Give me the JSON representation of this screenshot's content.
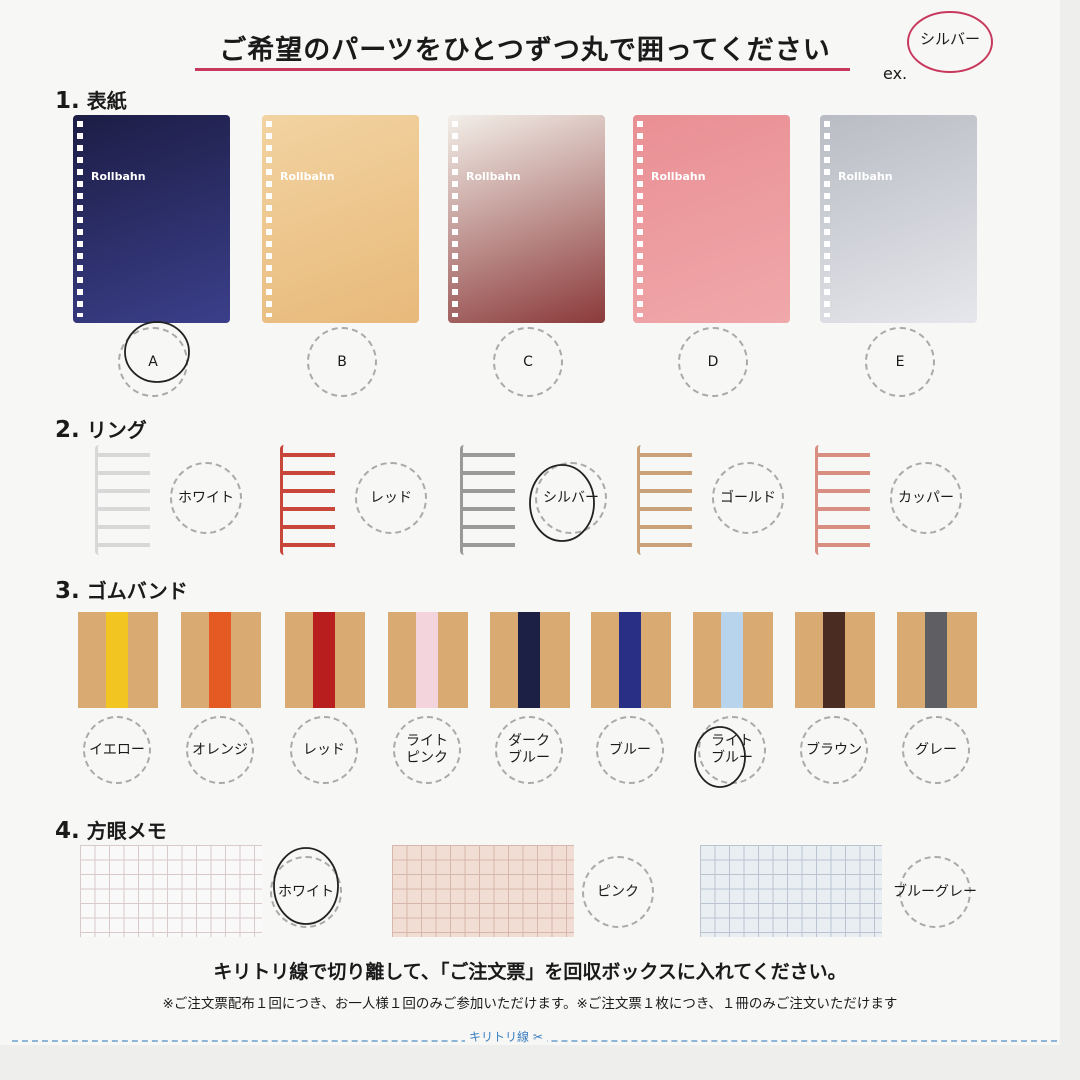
{
  "title": "ご希望のパーツをひとつずつ丸で囲ってください",
  "example": {
    "prefix": "ex.",
    "label": "シルバー"
  },
  "accent_color": "#c8385d",
  "sections": [
    {
      "num": "1.",
      "label": "表紙",
      "brand": "Rollbahn",
      "items": [
        {
          "label": "A",
          "colors": [
            "#1c1d45",
            "#3b3f8a"
          ],
          "selected": true
        },
        {
          "label": "B",
          "colors": [
            "#f2d3a1",
            "#e8b97a"
          ],
          "selected": false
        },
        {
          "label": "C",
          "colors": [
            "#f3efe9",
            "#8b3a3a"
          ],
          "selected": false
        },
        {
          "label": "D",
          "colors": [
            "#e98f94",
            "#f0a8aa"
          ],
          "selected": false
        },
        {
          "label": "E",
          "colors": [
            "#b9bcc4",
            "#e6e7ec"
          ],
          "selected": false
        }
      ]
    },
    {
      "num": "2.",
      "label": "リング",
      "items": [
        {
          "label": "ホワイト",
          "color": "#d8d8d8",
          "selected": false
        },
        {
          "label": "レッド",
          "color": "#c8473a",
          "selected": false
        },
        {
          "label": "シルバー",
          "color": "#9a9a9a",
          "selected": true
        },
        {
          "label": "ゴールド",
          "color": "#c9a27a",
          "selected": false
        },
        {
          "label": "カッパー",
          "color": "#d88f82",
          "selected": false
        }
      ]
    },
    {
      "num": "3.",
      "label": "ゴムバンド",
      "items": [
        {
          "label": "イエロー",
          "color": "#f2c521",
          "selected": false
        },
        {
          "label": "オレンジ",
          "color": "#e45a22",
          "selected": false
        },
        {
          "label": "レッド",
          "color": "#b81e1e",
          "selected": false
        },
        {
          "label": "ライト\nピンク",
          "color": "#f3d3dc",
          "selected": false
        },
        {
          "label": "ダーク\nブルー",
          "color": "#1c2045",
          "selected": false
        },
        {
          "label": "ブルー",
          "color": "#2a2f86",
          "selected": false
        },
        {
          "label": "ライト\nブルー",
          "color": "#b8d3ec",
          "selected": true
        },
        {
          "label": "ブラウン",
          "color": "#4a2c22",
          "selected": false
        },
        {
          "label": "グレー",
          "color": "#5e5e63",
          "selected": false
        }
      ]
    },
    {
      "num": "4.",
      "label": "方眼メモ",
      "items": [
        {
          "label": "ホワイト",
          "bg": "#f9f9f9",
          "line": "#d9c9c9",
          "selected": true
        },
        {
          "label": "ピンク",
          "bg": "#f1ddd3",
          "line": "#d6b7ab",
          "selected": false
        },
        {
          "label": "ブルーグレー",
          "bg": "#e9eef3",
          "line": "#b9c4d0",
          "selected": false
        }
      ]
    }
  ],
  "footer": {
    "instruction": "キリトリ線で切り離して、「ご注文票」を回収ボックスに入れてください。",
    "note": "※ご注文票配布１回につき、お一人様１回のみご参加いただけます。※ご注文票１枚につき、１冊のみご注文いただけます",
    "cut_label": "キリトリ線 ✂"
  }
}
